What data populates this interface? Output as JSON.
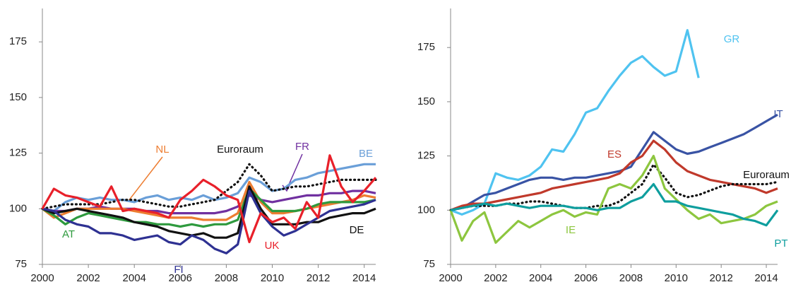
{
  "chart_data": [
    {
      "type": "line",
      "x": [
        2000,
        2000.5,
        2001,
        2001.5,
        2002,
        2002.5,
        2003,
        2003.5,
        2004,
        2004.5,
        2005,
        2005.5,
        2006,
        2006.5,
        2007,
        2007.5,
        2008,
        2008.5,
        2009,
        2009.5,
        2010,
        2010.5,
        2011,
        2011.5,
        2012,
        2012.5,
        2013,
        2013.5,
        2014,
        2014.5
      ],
      "xlim": [
        2000,
        2014.5
      ],
      "ylim": [
        75,
        190
      ],
      "xticks": [
        2000,
        2002,
        2004,
        2006,
        2008,
        2010,
        2012,
        2014
      ],
      "yticks": [
        75,
        100,
        125,
        150,
        175
      ],
      "series": [
        {
          "name": "BE",
          "color": "#6a9fd8",
          "values": [
            100,
            99,
            103,
            105,
            104,
            105,
            104,
            104,
            103,
            105,
            106,
            104,
            105,
            104,
            106,
            104,
            105,
            107,
            114,
            112,
            108,
            109,
            113,
            114,
            116,
            117,
            118,
            119,
            120,
            120
          ]
        },
        {
          "name": "Euroraum",
          "color": "#111111",
          "line_style": "dotted",
          "values": [
            100,
            101,
            102,
            102,
            102,
            102,
            103,
            104,
            104,
            103,
            102,
            101,
            101,
            102,
            103,
            104,
            108,
            112,
            120,
            115,
            108,
            109,
            110,
            110,
            111,
            112,
            113,
            113,
            113,
            113
          ]
        },
        {
          "name": "FR",
          "color": "#7030a0",
          "values": [
            100,
            99,
            99,
            100,
            100,
            101,
            100,
            100,
            100,
            99,
            99,
            98,
            98,
            98,
            98,
            98,
            99,
            101,
            106,
            104,
            103,
            104,
            105,
            106,
            106,
            107,
            107,
            108,
            108,
            107
          ]
        },
        {
          "name": "NL",
          "color": "#ed7d31",
          "values": [
            100,
            96,
            98,
            100,
            100,
            100,
            100,
            100,
            99,
            98,
            97,
            96,
            96,
            96,
            95,
            95,
            95,
            98,
            112,
            103,
            98,
            98,
            99,
            100,
            101,
            102,
            103,
            104,
            106,
            105
          ]
        },
        {
          "name": "AT",
          "color": "#2e9a3e",
          "values": [
            100,
            97,
            93,
            96,
            98,
            97,
            96,
            95,
            94,
            94,
            93,
            93,
            92,
            93,
            92,
            93,
            93,
            95,
            109,
            104,
            99,
            99,
            99,
            100,
            102,
            103,
            103,
            103,
            103,
            104
          ]
        },
        {
          "name": "DE",
          "color": "#111111",
          "values": [
            100,
            98,
            99,
            100,
            99,
            98,
            97,
            96,
            94,
            93,
            92,
            90,
            89,
            88,
            89,
            87,
            87,
            89,
            110,
            100,
            93,
            93,
            93,
            94,
            94,
            96,
            97,
            98,
            98,
            100
          ]
        },
        {
          "name": "FI",
          "color": "#2e3192",
          "values": [
            100,
            99,
            95,
            93,
            92,
            89,
            89,
            88,
            86,
            87,
            88,
            85,
            84,
            88,
            86,
            82,
            80,
            84,
            108,
            98,
            92,
            88,
            90,
            93,
            96,
            99,
            100,
            101,
            102,
            104
          ]
        },
        {
          "name": "UK",
          "color": "#e8202a",
          "values": [
            100,
            109,
            106,
            105,
            103,
            101,
            110,
            99,
            100,
            99,
            98,
            96,
            104,
            108,
            113,
            110,
            106,
            104,
            85,
            98,
            94,
            96,
            91,
            103,
            96,
            124,
            110,
            103,
            108,
            114
          ]
        }
      ]
    },
    {
      "type": "line",
      "x": [
        2000,
        2000.5,
        2001,
        2001.5,
        2002,
        2002.5,
        2003,
        2003.5,
        2004,
        2004.5,
        2005,
        2005.5,
        2006,
        2006.5,
        2007,
        2007.5,
        2008,
        2008.5,
        2009,
        2009.5,
        2010,
        2010.5,
        2011,
        2011.5,
        2012,
        2012.5,
        2013,
        2013.5,
        2014,
        2014.5
      ],
      "xlim": [
        2000,
        2014.5
      ],
      "ylim": [
        75,
        193
      ],
      "xticks": [
        2000,
        2002,
        2004,
        2006,
        2008,
        2010,
        2012,
        2014
      ],
      "yticks": [
        75,
        100,
        125,
        150,
        175
      ],
      "series": [
        {
          "name": "GR",
          "color": "#4fc3f0",
          "values": [
            100,
            98,
            100,
            103,
            117,
            115,
            114,
            116,
            120,
            128,
            127,
            135,
            145,
            147,
            155,
            162,
            168,
            171,
            166,
            162,
            164,
            183,
            161,
            null,
            null,
            null,
            null,
            null,
            null,
            null
          ]
        },
        {
          "name": "IT",
          "color": "#3953a4",
          "values": [
            100,
            101,
            104,
            107,
            108,
            110,
            112,
            114,
            115,
            115,
            114,
            115,
            115,
            116,
            117,
            118,
            120,
            128,
            136,
            132,
            128,
            126,
            127,
            129,
            131,
            133,
            135,
            138,
            141,
            144
          ]
        },
        {
          "name": "ES",
          "color": "#c0392b",
          "values": [
            100,
            102,
            103,
            103,
            104,
            105,
            106,
            107,
            108,
            110,
            111,
            112,
            113,
            114,
            115,
            117,
            122,
            125,
            132,
            128,
            122,
            118,
            116,
            114,
            113,
            112,
            111,
            110,
            108,
            110
          ]
        },
        {
          "name": "Euroraum",
          "color": "#111111",
          "line_style": "dotted",
          "values": [
            100,
            101,
            102,
            102,
            102,
            103,
            103,
            104,
            104,
            103,
            102,
            101,
            101,
            102,
            102,
            104,
            108,
            112,
            121,
            115,
            108,
            106,
            107,
            109,
            111,
            112,
            112,
            112,
            112,
            113
          ]
        },
        {
          "name": "IE",
          "color": "#8dc63f",
          "values": [
            100,
            86,
            95,
            99,
            85,
            90,
            95,
            92,
            95,
            98,
            100,
            97,
            99,
            98,
            110,
            112,
            110,
            116,
            125,
            110,
            105,
            100,
            96,
            98,
            94,
            95,
            96,
            98,
            102,
            104
          ]
        },
        {
          "name": "PT",
          "color": "#0e9e9e",
          "values": [
            100,
            101,
            102,
            103,
            102,
            103,
            102,
            101,
            102,
            102,
            102,
            101,
            101,
            100,
            101,
            101,
            104,
            106,
            112,
            104,
            104,
            102,
            101,
            100,
            99,
            98,
            96,
            95,
            93,
            100
          ]
        }
      ]
    }
  ]
}
